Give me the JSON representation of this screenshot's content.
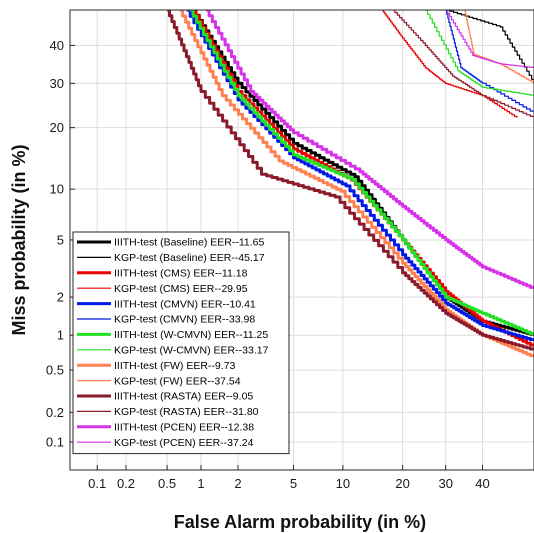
{
  "chart_data": {
    "type": "line",
    "title": "",
    "xlabel": "False Alarm probability (in %)",
    "ylabel": "Miss probability (in %)",
    "x_scale": "normal-deviate",
    "y_scale": "normal-deviate",
    "xlim": [
      0.05,
      55
    ],
    "ylim": [
      0.05,
      50
    ],
    "x_ticks": [
      0.1,
      0.2,
      0.5,
      1,
      2,
      5,
      10,
      20,
      30,
      40
    ],
    "x_tick_labels": [
      "0.1",
      "0.2",
      "0.5",
      "1",
      "2",
      "5",
      "10",
      "20",
      "30",
      "40"
    ],
    "y_ticks": [
      0.1,
      0.2,
      0.5,
      1,
      2,
      5,
      10,
      20,
      30,
      40
    ],
    "y_tick_labels": [
      "0.1",
      "0.2",
      "0.5",
      "1",
      "2",
      "5",
      "10",
      "20",
      "30",
      "40"
    ],
    "grid": true,
    "legend_position": "bottom-left",
    "series": [
      {
        "name": "IIITH-test (Baseline) EER--11.65",
        "color": "#000000",
        "width": 3,
        "points": [
          [
            0.85,
            50
          ],
          [
            2,
            30
          ],
          [
            5,
            17
          ],
          [
            11.65,
            11.65
          ],
          [
            20,
            5
          ],
          [
            30,
            2
          ],
          [
            40,
            1.3
          ],
          [
            55,
            1
          ]
        ]
      },
      {
        "name": "KGP-test (Baseline) EER--45.17",
        "color": "#000000",
        "width": 1.2,
        "points": [
          [
            30,
            50
          ],
          [
            45.17,
            45.17
          ],
          [
            55,
            30
          ]
        ]
      },
      {
        "name": "IIITH-test (CMS) EER--11.18",
        "color": "#e60000",
        "width": 3,
        "points": [
          [
            0.85,
            50
          ],
          [
            2,
            28
          ],
          [
            5,
            16
          ],
          [
            11.18,
            11.18
          ],
          [
            20,
            5
          ],
          [
            30,
            2.2
          ],
          [
            40,
            1.3
          ],
          [
            55,
            0.8
          ]
        ]
      },
      {
        "name": "KGP-test (CMS) EER--29.95",
        "color": "#e60000",
        "width": 1.2,
        "points": [
          [
            16,
            50
          ],
          [
            20,
            42
          ],
          [
            25,
            34
          ],
          [
            29.95,
            29.95
          ],
          [
            40,
            27
          ],
          [
            50,
            22
          ]
        ]
      },
      {
        "name": "IIITH-test (CMVN) EER--10.41",
        "color": "#0019e6",
        "width": 3,
        "points": [
          [
            0.75,
            50
          ],
          [
            2,
            26
          ],
          [
            5,
            14.5
          ],
          [
            10.41,
            10.41
          ],
          [
            20,
            4
          ],
          [
            30,
            1.8
          ],
          [
            40,
            1.2
          ],
          [
            55,
            0.9
          ]
        ]
      },
      {
        "name": "KGP-test (CMVN) EER--33.98",
        "color": "#0019e6",
        "width": 1.2,
        "points": [
          [
            30,
            50
          ],
          [
            33.98,
            33.98
          ],
          [
            40,
            30
          ],
          [
            55,
            23
          ]
        ]
      },
      {
        "name": "IIITH-test (W-CMVN) EER--11.25",
        "color": "#22e022",
        "width": 3,
        "points": [
          [
            0.8,
            50
          ],
          [
            2,
            27
          ],
          [
            5,
            15
          ],
          [
            11.25,
            11.25
          ],
          [
            20,
            5
          ],
          [
            30,
            2
          ],
          [
            40,
            1.5
          ],
          [
            55,
            1
          ]
        ]
      },
      {
        "name": "KGP-test (W-CMVN) EER--33.17",
        "color": "#22e022",
        "width": 1.2,
        "points": [
          [
            25,
            50
          ],
          [
            33.17,
            33.17
          ],
          [
            40,
            29
          ],
          [
            55,
            27
          ]
        ]
      },
      {
        "name": "IIITH-test (FW) EER--9.73",
        "color": "#ff8050",
        "width": 3,
        "points": [
          [
            0.65,
            50
          ],
          [
            1.5,
            27
          ],
          [
            4,
            14
          ],
          [
            9.73,
            9.73
          ],
          [
            20,
            3.5
          ],
          [
            30,
            1.6
          ],
          [
            40,
            1
          ],
          [
            55,
            0.65
          ]
        ]
      },
      {
        "name": "KGP-test (FW) EER--37.54",
        "color": "#ff8050",
        "width": 1.2,
        "points": [
          [
            35,
            50
          ],
          [
            37.54,
            37.54
          ],
          [
            45,
            35
          ],
          [
            55,
            30
          ]
        ]
      },
      {
        "name": "IIITH-test (RASTA) EER--9.05",
        "color": "#8b1a2b",
        "width": 3,
        "points": [
          [
            0.5,
            50
          ],
          [
            1,
            28
          ],
          [
            3,
            12
          ],
          [
            9.05,
            9.05
          ],
          [
            20,
            3
          ],
          [
            30,
            1.5
          ],
          [
            40,
            1
          ],
          [
            55,
            0.75
          ]
        ]
      },
      {
        "name": "KGP-test (RASTA) EER--31.80",
        "color": "#8b1a2b",
        "width": 1.2,
        "points": [
          [
            18,
            50
          ],
          [
            25,
            40
          ],
          [
            31.8,
            31.8
          ],
          [
            40,
            27
          ],
          [
            55,
            22
          ]
        ]
      },
      {
        "name": "IIITH-test (PCEN) EER--12.38",
        "color": "#d633e8",
        "width": 3,
        "points": [
          [
            1.1,
            50
          ],
          [
            2.5,
            28
          ],
          [
            5,
            19
          ],
          [
            12.38,
            12.38
          ],
          [
            20,
            8
          ],
          [
            30,
            5
          ],
          [
            40,
            3.3
          ],
          [
            55,
            2.3
          ]
        ]
      },
      {
        "name": "KGP-test (PCEN) EER--37.24",
        "color": "#d633e8",
        "width": 1.2,
        "points": [
          [
            30,
            50
          ],
          [
            37.24,
            37.24
          ],
          [
            45,
            35
          ],
          [
            55,
            34
          ]
        ]
      }
    ]
  }
}
